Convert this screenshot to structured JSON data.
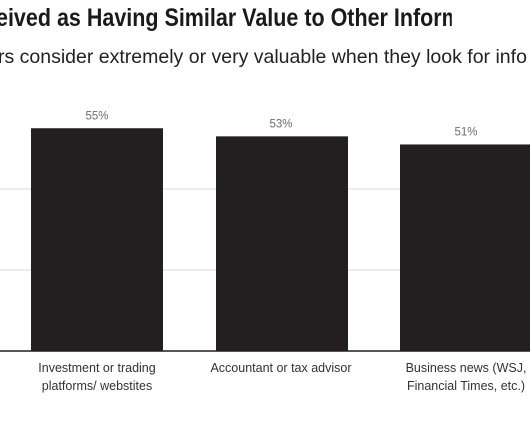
{
  "header": {
    "title": "eived as Having Similar Value to Other Inform",
    "subtitle": "rs consider extremely or very valuable when they look for info"
  },
  "colors": {
    "bar": "#231f20",
    "grid": "#d9d9d9",
    "axis": "#231f20"
  },
  "chart_data": {
    "type": "bar",
    "categories": [
      [
        "Investment or trading",
        "platforms/ webstites"
      ],
      [
        "Accountant or tax advisor"
      ],
      [
        "Business news (WSJ,",
        "Financial Times, etc.)"
      ]
    ],
    "values": [
      55,
      53,
      51
    ],
    "value_labels": [
      "55%",
      "53%",
      "51%"
    ],
    "ylim": [
      0,
      60
    ],
    "grid": true
  }
}
